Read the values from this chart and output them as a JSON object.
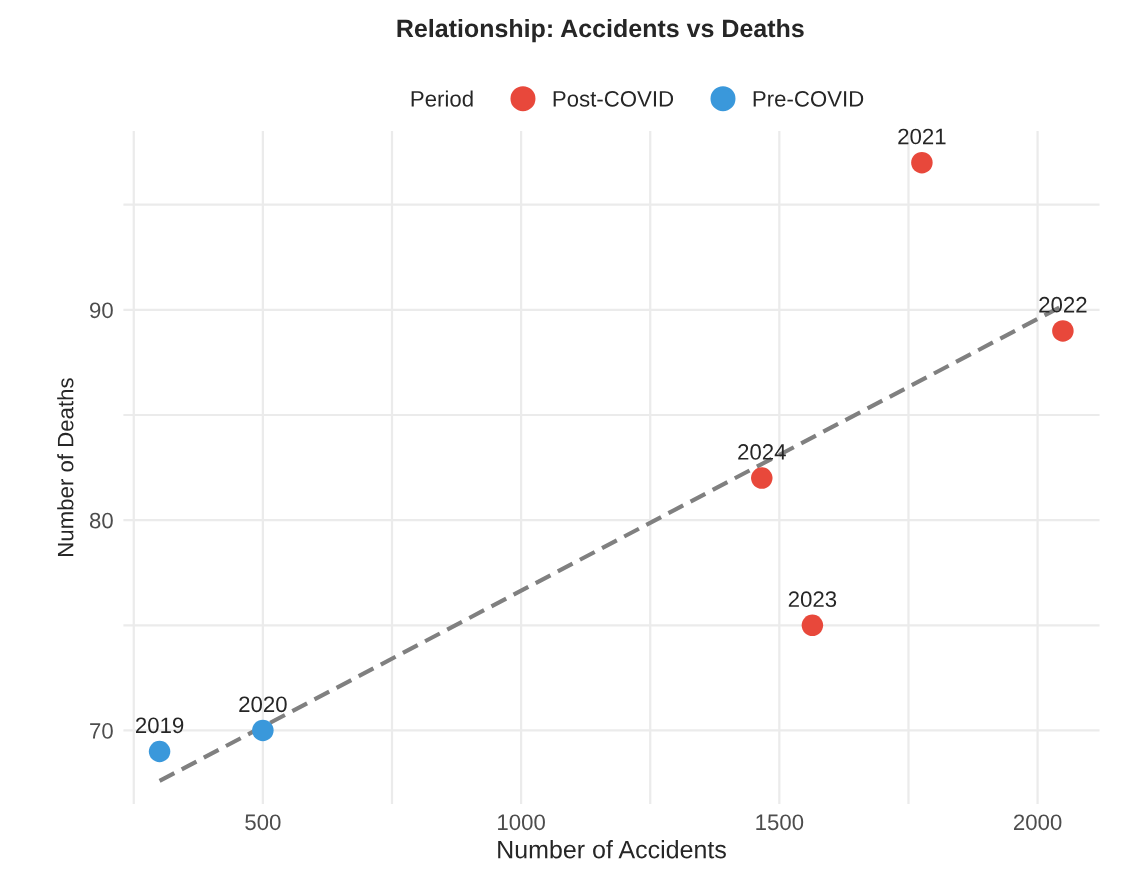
{
  "chart_data": {
    "type": "scatter",
    "title": "Relationship: Accidents vs Deaths",
    "xlabel": "Number of Accidents",
    "ylabel": "Number of Deaths",
    "legend_title": "Period",
    "legend": "top",
    "series": [
      {
        "name": "Post-COVID",
        "color": "#e8483b",
        "x": [
          1776,
          2049,
          1564,
          1466
        ],
        "values": [
          97,
          89,
          75,
          82
        ]
      },
      {
        "name": "Pre-COVID",
        "color": "#3a98db",
        "x": [
          300,
          500
        ],
        "values": [
          69,
          70
        ]
      },
      {
        "type": "line",
        "color": "#808080",
        "line_style": "dashed",
        "marker": "none",
        "x": [
          300,
          2049
        ],
        "values": [
          67.6,
          90.2
        ]
      }
    ],
    "annotations": [
      {
        "text": "2021",
        "x": 1776,
        "y": 97
      },
      {
        "text": "2022",
        "x": 2049,
        "y": 89
      },
      {
        "text": "2023",
        "x": 1564,
        "y": 75
      },
      {
        "text": "2024",
        "x": 1466,
        "y": 82
      },
      {
        "text": "2019",
        "x": 300,
        "y": 69
      },
      {
        "text": "2020",
        "x": 500,
        "y": 70
      }
    ],
    "xlim": [
      230,
      2120
    ],
    "ylim": [
      66.5,
      98.5
    ],
    "xticks": [
      {
        "value": 250,
        "label": null
      },
      500,
      {
        "value": 750,
        "label": null
      },
      1000,
      {
        "value": 1250,
        "label": null
      },
      1500,
      {
        "value": 1750,
        "label": null
      },
      2000
    ],
    "yticks": [
      {
        "value": 75,
        "label": null
      },
      70,
      80,
      {
        "value": 85,
        "label": null
      },
      90,
      {
        "value": 95,
        "label": null
      }
    ],
    "grid": true,
    "marker": "circle"
  }
}
